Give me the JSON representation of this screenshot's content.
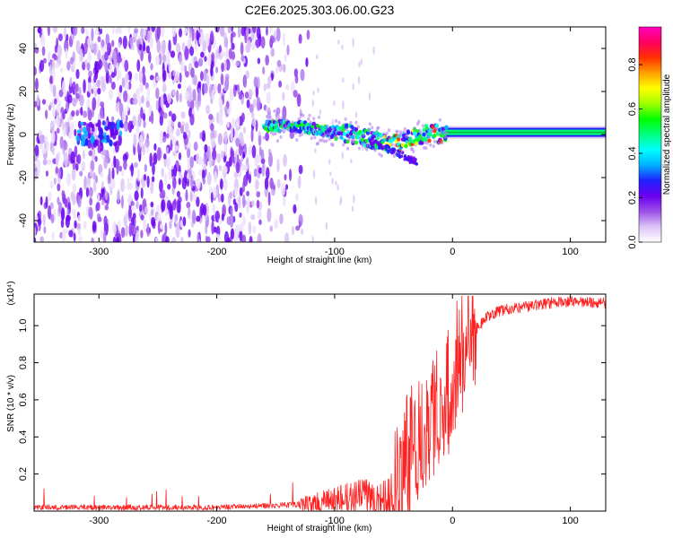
{
  "chart_data": [
    {
      "type": "heatmap",
      "title": "C2E6.2025.303.06.00.G23",
      "xlabel": "Height of straight line (km)",
      "ylabel": "Frequency (Hz)",
      "xlim": [
        -355,
        130
      ],
      "ylim": [
        -50,
        50
      ],
      "x_ticks": [
        -300,
        -200,
        -100,
        0,
        100
      ],
      "y_ticks": [
        -40,
        -20,
        0,
        20,
        40
      ],
      "colorbar": {
        "label": "Normalized spectral amplitude",
        "range": [
          0.0,
          0.97
        ],
        "ticks": [
          0.0,
          0.2,
          0.4,
          0.6,
          0.8
        ],
        "tick_labels": [
          "0.0",
          "0.2",
          "0.4",
          "0.6",
          "0.8"
        ],
        "colors": [
          "#ffffff",
          "#dcc4f6",
          "#9b50e6",
          "#6a00f0",
          "#2020ff",
          "#00b0ff",
          "#00ffff",
          "#00ff80",
          "#00ff00",
          "#a0ff00",
          "#ffff00",
          "#ffa000",
          "#ff3000",
          "#ff0060",
          "#ff00c0"
        ]
      },
      "signal_track": {
        "x": [
          -160,
          -140,
          -120,
          -100,
          -85,
          -70,
          -55,
          -40,
          -30,
          -20,
          -10,
          0,
          20,
          50,
          80,
          110,
          130
        ],
        "center_hz": [
          4,
          4,
          3,
          1,
          0,
          -2,
          -5,
          -3,
          -1,
          1,
          0,
          1,
          1,
          1,
          1,
          1,
          1
        ]
      },
      "noise_floor_extent": [
        -355,
        -120
      ]
    },
    {
      "type": "line",
      "xlabel": "Height of straight line (km)",
      "ylabel": "SNR (10 * v/v)",
      "scale_label": "(x10⁴)",
      "xlim": [
        -355,
        130
      ],
      "ylim": [
        0,
        1.17
      ],
      "x_ticks": [
        -300,
        -200,
        -100,
        0,
        100
      ],
      "y_ticks": [
        0.2,
        0.4,
        0.6,
        0.8,
        1.0
      ],
      "y_tick_labels": [
        "0.2",
        "0.4",
        "0.6",
        "0.8",
        "1.0"
      ],
      "series": [
        {
          "name": "SNR",
          "color": "#ff2020",
          "x": [
            -355,
            -300,
            -250,
            -200,
            -150,
            -120,
            -100,
            -80,
            -70,
            -60,
            -50,
            -45,
            -40,
            -35,
            -30,
            -25,
            -20,
            -15,
            -10,
            -5,
            0,
            10,
            20,
            30,
            40,
            60,
            80,
            100,
            130
          ],
          "values": [
            0.02,
            0.02,
            0.02,
            0.02,
            0.03,
            0.04,
            0.06,
            0.08,
            0.09,
            0.06,
            0.1,
            0.12,
            0.25,
            0.35,
            0.4,
            0.45,
            0.5,
            0.55,
            0.6,
            0.6,
            0.75,
            0.9,
            0.98,
            1.05,
            1.08,
            1.1,
            1.12,
            1.13,
            1.12
          ]
        }
      ]
    }
  ]
}
